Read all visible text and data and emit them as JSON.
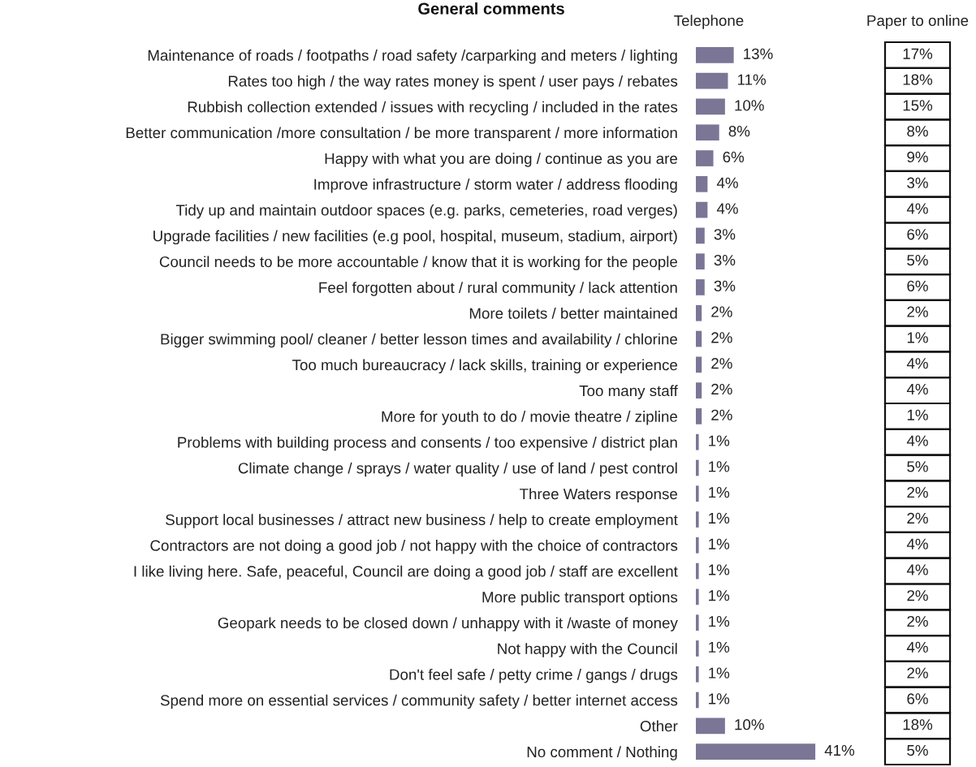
{
  "chart_data": [
    {
      "type": "bar",
      "orientation": "horizontal",
      "title": "General comments",
      "categories": [
        "Maintenance of roads / footpaths / road safety /carparking and meters / lighting",
        "Rates too high / the way rates money is spent / user pays / rebates",
        "Rubbish collection extended / issues with recycling / included in the rates",
        "Better communication /more consultation / be more transparent / more information",
        "Happy with what you are doing / continue as you are",
        "Improve infrastructure / storm water / address flooding",
        "Tidy up and maintain outdoor spaces (e.g. parks, cemeteries, road verges)",
        "Upgrade facilities / new facilities (e.g pool, hospital, museum, stadium, airport)",
        "Council needs to be more accountable / know that it is working for the people",
        "Feel forgotten about / rural community / lack attention",
        "More toilets / better maintained",
        "Bigger swimming pool/ cleaner / better lesson times and availability / chlorine",
        "Too much bureaucracy / lack skills, training or experience",
        "Too many staff",
        "More for youth to do / movie theatre / zipline",
        "Problems with building process and consents / too expensive / district plan",
        "Climate change / sprays / water quality / use of land / pest control",
        "Three Waters response",
        "Support local businesses / attract new business / help to create employment",
        "Contractors are not doing a good job / not happy with the choice of contractors",
        "I like living here. Safe, peaceful, Council are doing a good job / staff are excellent",
        "More public transport options",
        "Geopark needs to be closed down / unhappy with it /waste of money",
        "Not happy with the Council",
        "Don't feel safe / petty crime / gangs / drugs",
        "Spend more on essential services / community safety / better internet access",
        "Other",
        "No comment / Nothing"
      ],
      "series": [
        {
          "name": "Telephone",
          "color": "#7b7596",
          "values": [
            13,
            11,
            10,
            8,
            6,
            4,
            4,
            3,
            3,
            3,
            2,
            2,
            2,
            2,
            2,
            1,
            1,
            1,
            1,
            1,
            1,
            1,
            1,
            1,
            1,
            1,
            10,
            41
          ],
          "value_labels": [
            "13%",
            "11%",
            "10%",
            "8%",
            "6%",
            "4%",
            "4%",
            "3%",
            "3%",
            "3%",
            "2%",
            "2%",
            "2%",
            "2%",
            "2%",
            "1%",
            "1%",
            "1%",
            "1%",
            "1%",
            "1%",
            "1%",
            "1%",
            "1%",
            "1%",
            "1%",
            "10%",
            "41%"
          ]
        }
      ]
    },
    {
      "type": "other",
      "series": [
        {
          "name": "Paper to online",
          "values": [
            17,
            18,
            15,
            8,
            9,
            3,
            4,
            6,
            5,
            6,
            2,
            1,
            4,
            4,
            1,
            4,
            5,
            2,
            2,
            4,
            4,
            2,
            2,
            4,
            2,
            6,
            18,
            5
          ],
          "value_labels": [
            "17%",
            "18%",
            "15%",
            "8%",
            "9%",
            "3%",
            "4%",
            "6%",
            "5%",
            "6%",
            "2%",
            "1%",
            "4%",
            "4%",
            "1%",
            "4%",
            "5%",
            "2%",
            "2%",
            "4%",
            "4%",
            "2%",
            "2%",
            "4%",
            "2%",
            "6%",
            "18%",
            "5%"
          ]
        }
      ]
    }
  ]
}
